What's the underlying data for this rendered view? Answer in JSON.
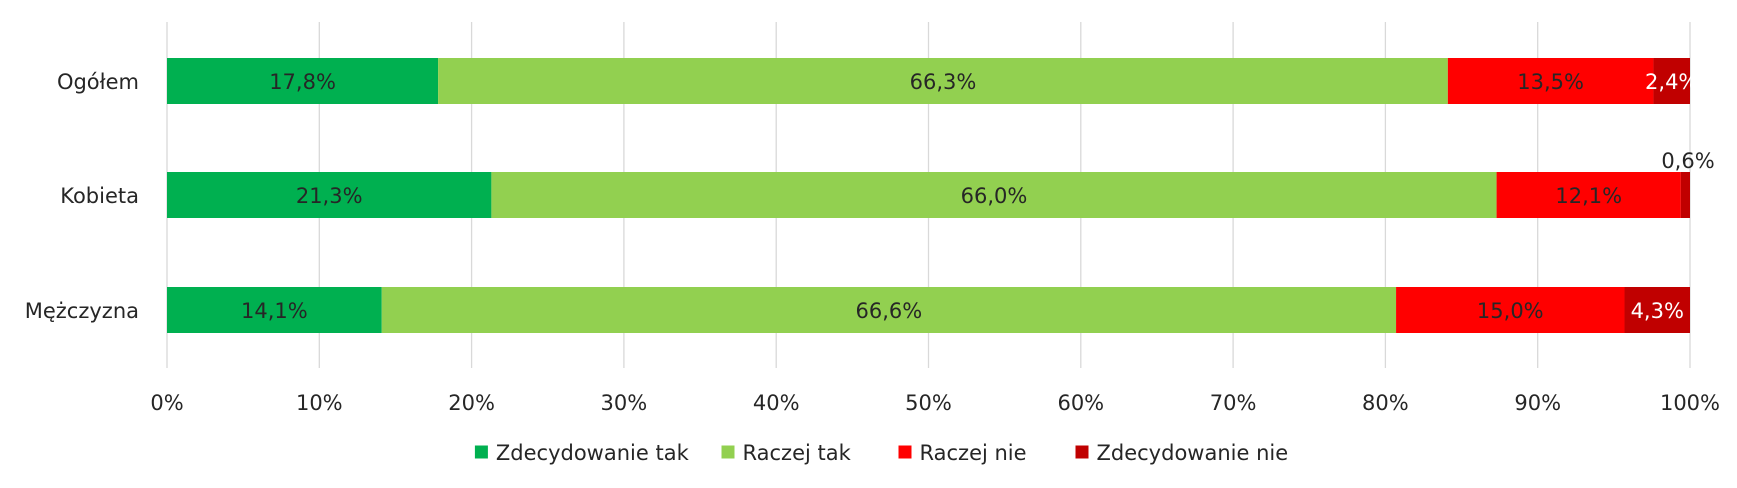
{
  "chart_data": {
    "type": "bar",
    "orientation": "horizontal",
    "stacked": true,
    "categories": [
      "Ogółem",
      "Kobieta",
      "Mężczyzna"
    ],
    "series": [
      {
        "name": "Zdecydowanie tak",
        "color": "#00b050",
        "values": [
          17.8,
          21.3,
          14.1
        ],
        "labels": [
          "17,8%",
          "21,3%",
          "14,1%"
        ],
        "label_color": "#262626"
      },
      {
        "name": "Raczej tak",
        "color": "#92d050",
        "values": [
          66.3,
          66.0,
          66.6
        ],
        "labels": [
          "66,3%",
          "66,0%",
          "66,6%"
        ],
        "label_color": "#262626"
      },
      {
        "name": "Raczej nie",
        "color": "#ff0000",
        "values": [
          13.5,
          12.1,
          15.0
        ],
        "labels": [
          "13,5%",
          "12,1%",
          "15,0%"
        ],
        "label_color": "#262626"
      },
      {
        "name": "Zdecydowanie nie",
        "color": "#c00000",
        "values": [
          2.4,
          0.6,
          4.3
        ],
        "labels": [
          "2,4%",
          "0,6%",
          "4,3%"
        ],
        "label_color": "#ffffff"
      }
    ],
    "xlim": [
      0,
      100
    ],
    "x_ticks": [
      "0%",
      "10%",
      "20%",
      "30%",
      "40%",
      "50%",
      "60%",
      "70%",
      "80%",
      "90%",
      "100%"
    ],
    "grid": true,
    "legend_position": "bottom",
    "title": "",
    "xlabel": "",
    "ylabel": ""
  }
}
